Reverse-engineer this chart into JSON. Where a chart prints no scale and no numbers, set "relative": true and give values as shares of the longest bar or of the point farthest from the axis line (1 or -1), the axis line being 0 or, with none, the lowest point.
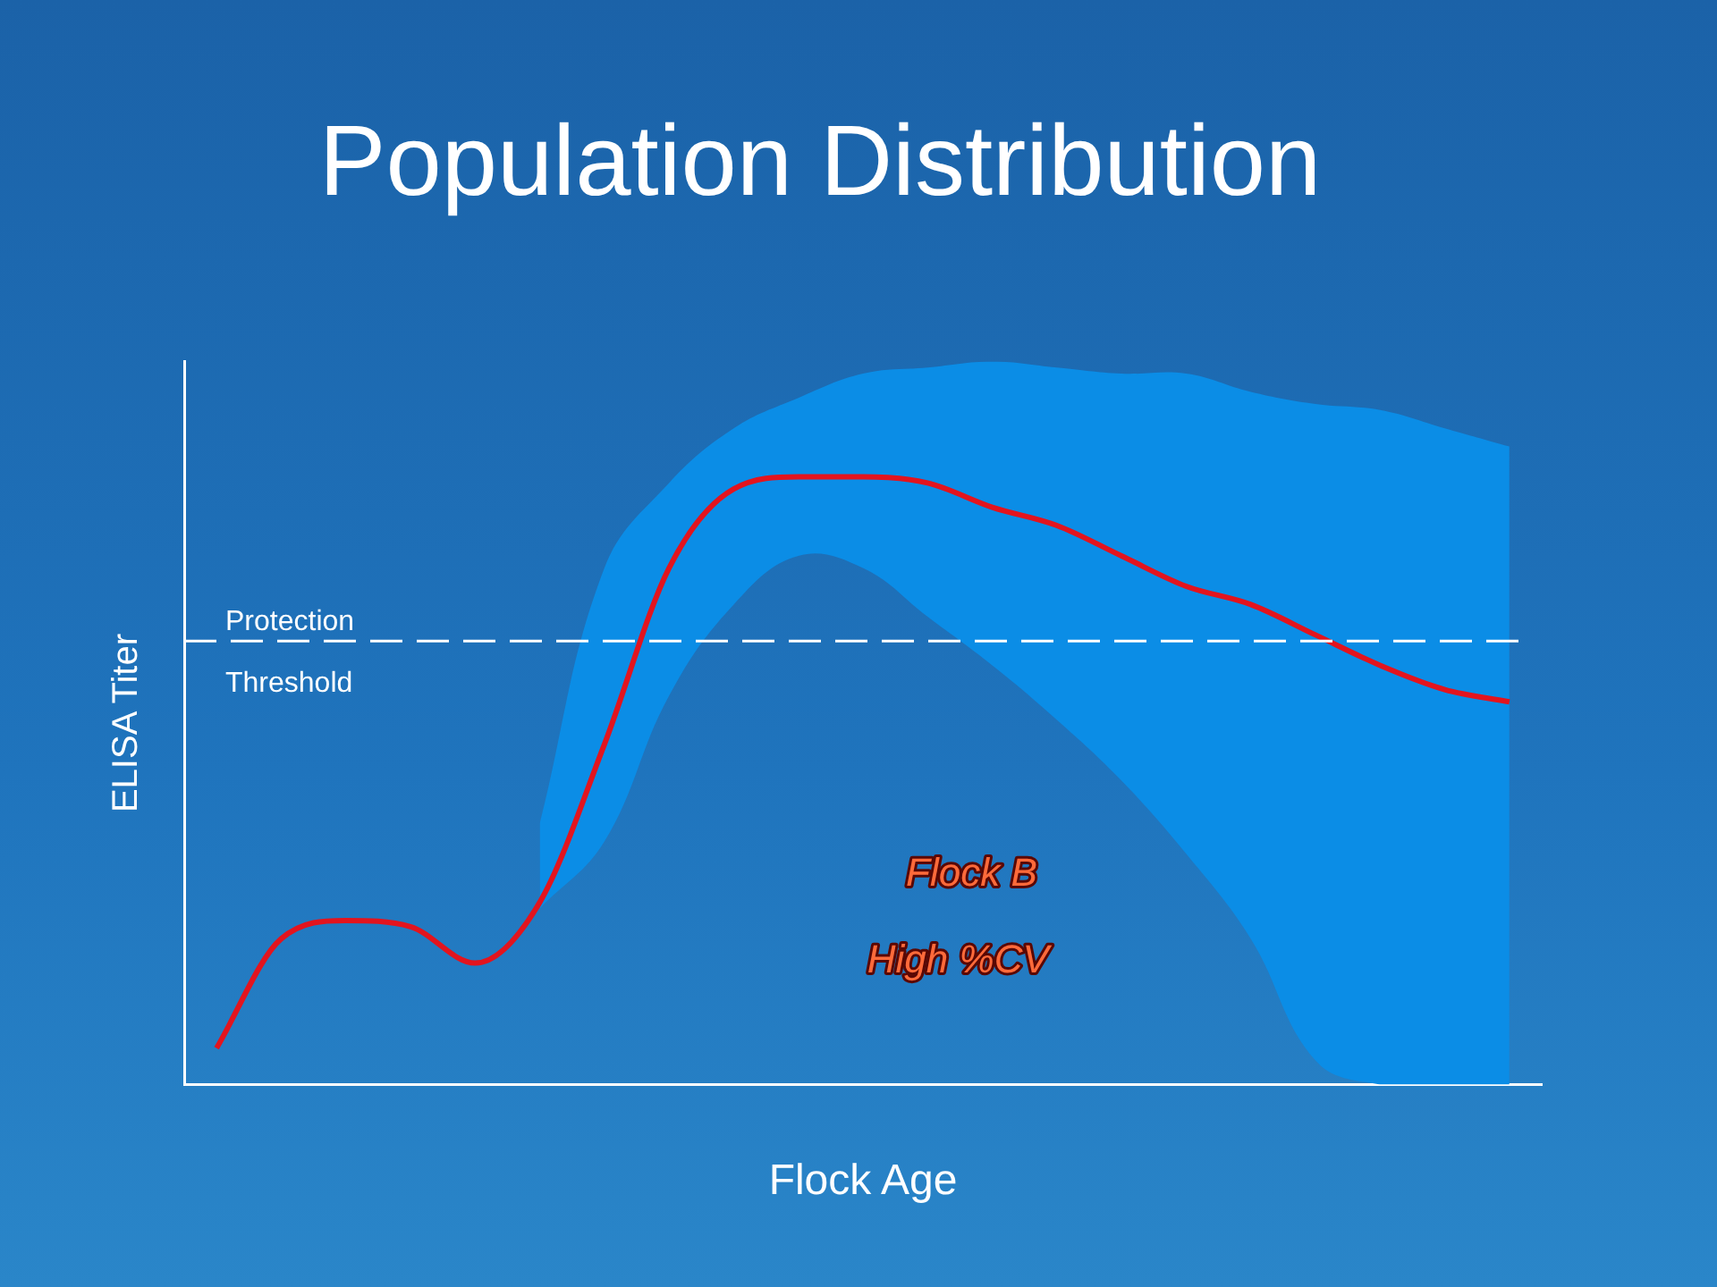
{
  "chart_data": {
    "type": "line",
    "title": "Population Distribution",
    "xlabel": "Flock Age",
    "ylabel": "ELISA Titer",
    "relative": true,
    "categories": [
      null,
      null,
      null,
      null,
      null,
      null,
      null,
      null,
      null,
      null,
      null,
      null,
      null,
      null,
      null,
      null,
      null,
      null,
      null,
      null,
      null
    ],
    "series": [
      {
        "color": "#e3141e",
        "values": [
          0.06,
          0.24,
          0.27,
          0.26,
          0.2,
          0.3,
          0.56,
          0.85,
          0.98,
          1,
          1,
          0.99,
          0.95,
          0.92,
          0.87,
          0.82,
          0.79,
          0.74,
          0.69,
          0.65,
          0.63
        ],
        "lower": [
          null,
          null,
          null,
          null,
          null,
          0.29,
          0.4,
          0.64,
          0.79,
          0.87,
          0.85,
          0.77,
          0.69,
          0.6,
          0.5,
          0.38,
          0.24,
          0.04,
          0,
          0,
          0
        ],
        "upper": [
          null,
          null,
          null,
          null,
          null,
          0.43,
          0.85,
          0.99,
          1.08,
          1.13,
          1.17,
          1.18,
          1.19,
          1.18,
          1.17,
          1.17,
          1.14,
          1.12,
          1.11,
          1.08,
          1.05
        ]
      }
    ],
    "ref_lines": [
      {
        "axis": "y",
        "value": 0.73,
        "label": "Protection Threshold",
        "color": "#ffffff",
        "line_style": "dashed"
      }
    ],
    "annotations": [
      "Flock B",
      "High %CV"
    ],
    "grid": false,
    "legend": false,
    "marker": "none",
    "line_style": "solid"
  }
}
